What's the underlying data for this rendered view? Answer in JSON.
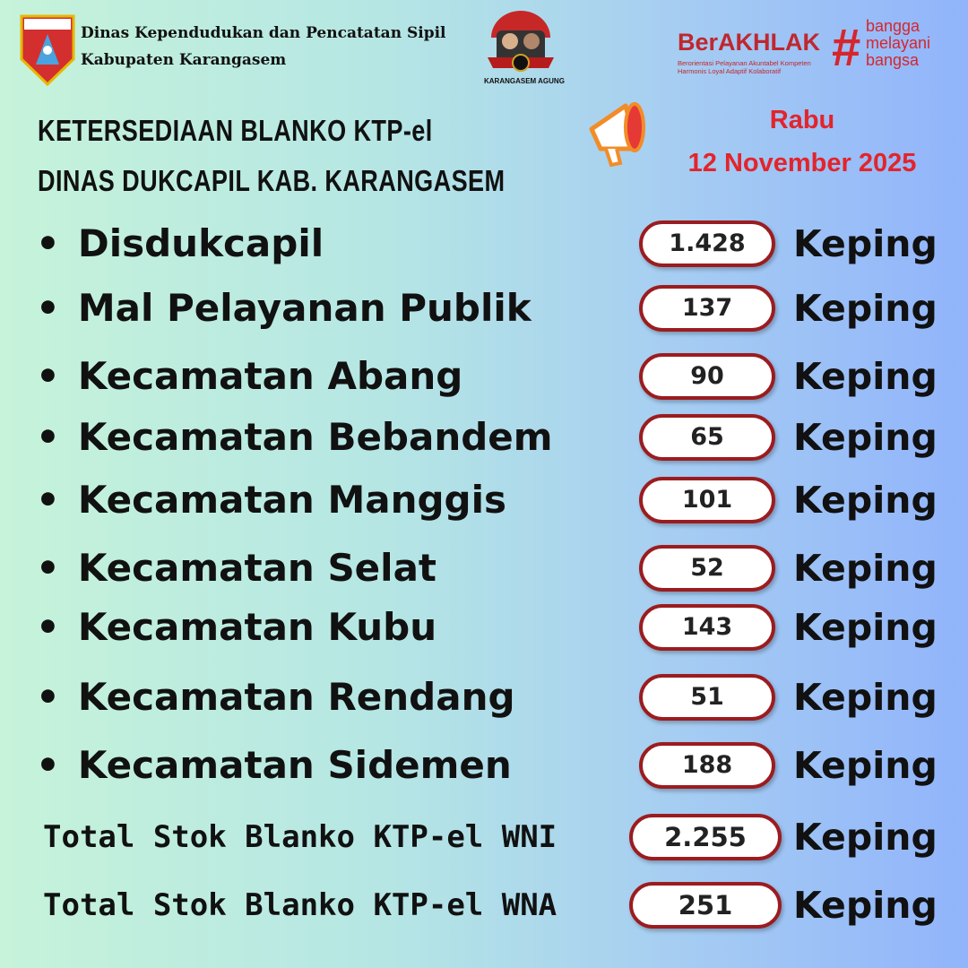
{
  "header": {
    "org_line1": "Dinas Kependudukan dan Pencatatan Sipil",
    "org_line2": "Kabupaten Karangasem",
    "logo_label": "KARANGASEM",
    "center_logo_caption": "KARANGASEM AGUNG",
    "berakhlak": "BerAKHLAK",
    "berakhlak_sub1": "Berorientasi Pelayanan Akuntabel Kompeten",
    "berakhlak_sub2": "Harmonis Loyal Adaptif Kolaboratif",
    "tagline": [
      "bangga",
      "melayani",
      "bangsa"
    ]
  },
  "title": {
    "line1": "KETERSEDIAAN BLANKO KTP-el",
    "line2": "DINAS DUKCAPIL KAB. KARANGASEM"
  },
  "date": {
    "day": "Rabu",
    "date": "12 November 2025"
  },
  "unit": "Keping",
  "rows": [
    {
      "label": "Disdukcapil",
      "value": "1.428"
    },
    {
      "label": "Mal Pelayanan Publik",
      "value": "137"
    },
    {
      "label": "Kecamatan Abang",
      "value": "90"
    },
    {
      "label": "Kecamatan Bebandem",
      "value": "65"
    },
    {
      "label": "Kecamatan Manggis",
      "value": "101"
    },
    {
      "label": "Kecamatan Selat",
      "value": "52"
    },
    {
      "label": "Kecamatan Kubu",
      "value": "143"
    },
    {
      "label": "Kecamatan Rendang",
      "value": "51"
    },
    {
      "label": "Kecamatan Sidemen",
      "value": "188"
    }
  ],
  "totals": [
    {
      "label": "Total Stok Blanko KTP-el WNI",
      "value": "2.255"
    },
    {
      "label": "Total Stok Blanko KTP-el WNA",
      "value": "251"
    }
  ],
  "colors": {
    "accent_red": "#9b1c1f",
    "date_red": "#e3242b",
    "brand_red": "#c0272d"
  }
}
